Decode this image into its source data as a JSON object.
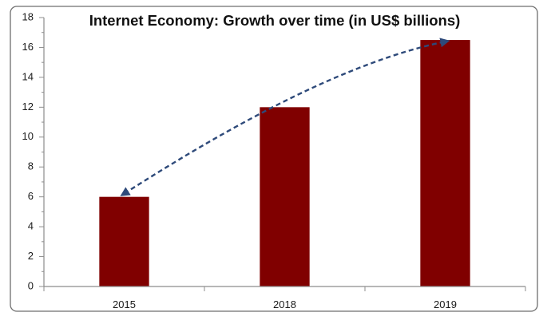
{
  "chart_data": {
    "type": "bar",
    "title": "Internet Economy:  Growth over time (in US$ billions)",
    "categories": [
      "2015",
      "2018",
      "2019"
    ],
    "values": [
      6,
      12,
      16.5
    ],
    "xlabel": "",
    "ylabel": "",
    "ylim": [
      0,
      18
    ],
    "yticks": [
      "0",
      "2",
      "4",
      "6",
      "8",
      "10",
      "12",
      "14",
      "16",
      "18"
    ],
    "grid": false,
    "legend": "none",
    "bar_color": "#800000",
    "arrow_color": "#2e4a7a",
    "annotation": "dashed curved double-headed arrow from 2015 bar top to 2019 bar top"
  }
}
